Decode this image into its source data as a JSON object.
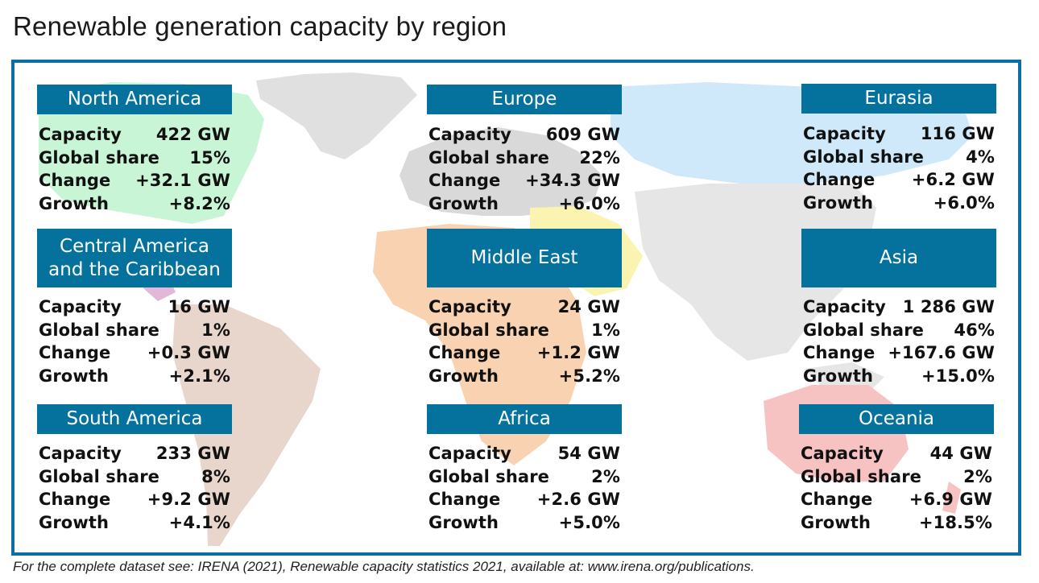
{
  "title": "Renewable generation capacity by region",
  "footnote": "For the complete dataset see: IRENA (2021), Renewable capacity statistics 2021, available at:  www.irena.org/publications.",
  "stat_labels": {
    "capacity": "Capacity",
    "share": "Global share",
    "change": "Change",
    "growth": "Growth"
  },
  "regions": [
    {
      "name": "North America",
      "capacity": "422 GW",
      "share": "15%",
      "change": "+32.1 GW",
      "growth": "+8.2%"
    },
    {
      "name": "Europe",
      "capacity": "609 GW",
      "share": "22%",
      "change": "+34.3 GW",
      "growth": "+6.0%"
    },
    {
      "name": "Eurasia",
      "capacity": "116 GW",
      "share": "4%",
      "change": "+6.2 GW",
      "growth": "+6.0%"
    },
    {
      "name_line1": "Central America",
      "name_line2": "and the Caribbean",
      "capacity": "16 GW",
      "share": "1%",
      "change": "+0.3 GW",
      "growth": "+2.1%"
    },
    {
      "name": "Middle East",
      "capacity": "24 GW",
      "share": "1%",
      "change": "+1.2 GW",
      "growth": "+5.2%"
    },
    {
      "name": "Asia",
      "capacity": "1 286 GW",
      "share": "46%",
      "change": "+167.6 GW",
      "growth": "+15.0%"
    },
    {
      "name": "South America",
      "capacity": "233 GW",
      "share": "8%",
      "change": "+9.2 GW",
      "growth": "+4.1%"
    },
    {
      "name": "Africa",
      "capacity": "54 GW",
      "share": "2%",
      "change": "+2.6 GW",
      "growth": "+5.0%"
    },
    {
      "name": "Oceania",
      "capacity": "44 GW",
      "share": "2%",
      "change": "+6.9 GW",
      "growth": "+18.5%"
    }
  ],
  "colors": {
    "accent": "#05729e",
    "frame": "#0c6fa3",
    "north_america": "#c8f5d6",
    "central_america": "#e2b8d6",
    "south_america": "#e8d5cb",
    "europe": "#d9d9d9",
    "eurasia": "#cfe9fb",
    "middle_east": "#fbf3b0",
    "africa": "#f9d2b1",
    "asia": "#e6e6e6",
    "oceania": "#f6c2c2"
  }
}
